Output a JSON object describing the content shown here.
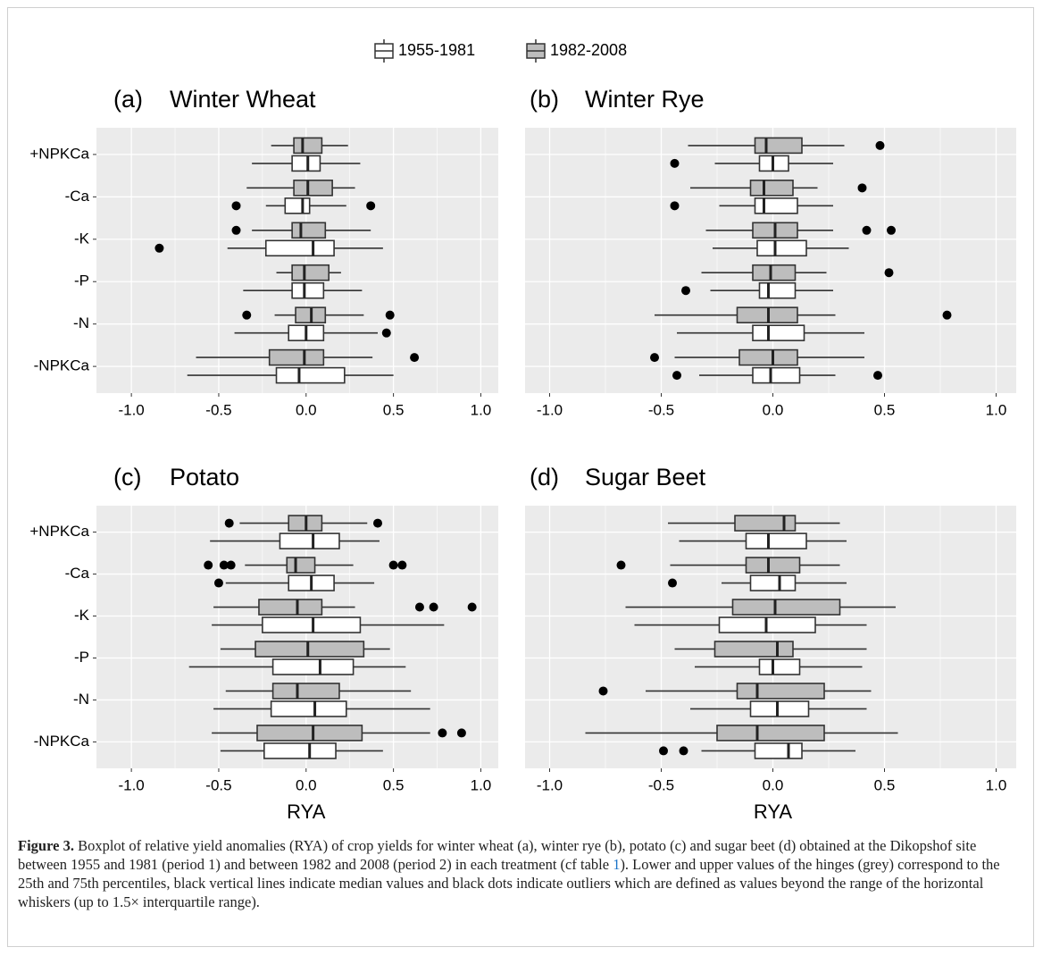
{
  "legend": [
    {
      "name": "1955-1981",
      "color": "#ffffff"
    },
    {
      "name": "1982-2008",
      "color": "#bdbdbd"
    }
  ],
  "chart_data": [
    {
      "type": "boxplot",
      "label": "(a)",
      "title": "Winter Wheat",
      "categories": [
        "+NPKCa",
        "-Ca",
        "-K",
        "-P",
        "-N",
        "-NPKCa"
      ],
      "xlim": [
        -1.2,
        1.1
      ],
      "xticks": [
        {
          "value": -1,
          "label": "-1.0"
        },
        -0.5,
        {
          "value": 0,
          "label": "0.0"
        },
        0.5,
        {
          "value": 1,
          "label": "1.0"
        }
      ],
      "periods": [
        {
          "boxes": [
            {
              "whislo": -0.31,
              "q1": -0.08,
              "med": 0.01,
              "q3": 0.08,
              "whishi": 0.31,
              "fliers": []
            },
            {
              "whislo": -0.23,
              "q1": -0.12,
              "med": -0.02,
              "q3": 0.02,
              "whishi": 0.23,
              "fliers": [
                -0.4,
                0.37
              ]
            },
            {
              "whislo": -0.45,
              "q1": -0.23,
              "med": 0.04,
              "q3": 0.16,
              "whishi": 0.44,
              "fliers": [
                -0.84
              ]
            },
            {
              "whislo": -0.36,
              "q1": -0.08,
              "med": -0.01,
              "q3": 0.1,
              "whishi": 0.32,
              "fliers": []
            },
            {
              "whislo": -0.41,
              "q1": -0.1,
              "med": 0.0,
              "q3": 0.1,
              "whishi": 0.41,
              "fliers": [
                0.46
              ]
            },
            {
              "whislo": -0.68,
              "q1": -0.17,
              "med": -0.04,
              "q3": 0.22,
              "whishi": 0.5,
              "fliers": []
            }
          ]
        },
        {
          "boxes": [
            {
              "whislo": -0.2,
              "q1": -0.07,
              "med": -0.02,
              "q3": 0.09,
              "whishi": 0.24,
              "fliers": []
            },
            {
              "whislo": -0.34,
              "q1": -0.07,
              "med": 0.01,
              "q3": 0.15,
              "whishi": 0.28,
              "fliers": []
            },
            {
              "whislo": -0.31,
              "q1": -0.08,
              "med": -0.03,
              "q3": 0.11,
              "whishi": 0.37,
              "fliers": [
                -0.4
              ]
            },
            {
              "whislo": -0.17,
              "q1": -0.08,
              "med": -0.01,
              "q3": 0.13,
              "whishi": 0.2,
              "fliers": []
            },
            {
              "whislo": -0.18,
              "q1": -0.06,
              "med": 0.03,
              "q3": 0.11,
              "whishi": 0.33,
              "fliers": [
                -0.34,
                0.48
              ]
            },
            {
              "whislo": -0.63,
              "q1": -0.21,
              "med": -0.01,
              "q3": 0.1,
              "whishi": 0.38,
              "fliers": [
                0.62
              ]
            }
          ]
        }
      ]
    },
    {
      "type": "boxplot",
      "label": "(b)",
      "title": "Winter Rye",
      "xlim": [
        -1.11,
        1.09
      ],
      "xticks": [
        {
          "value": -1,
          "label": "-1.0"
        },
        -0.5,
        {
          "value": 0,
          "label": "0.0"
        },
        0.5,
        {
          "value": 1,
          "label": "1.0"
        }
      ],
      "periods": [
        {
          "boxes": [
            {
              "whislo": -0.26,
              "q1": -0.06,
              "med": 0.0,
              "q3": 0.07,
              "whishi": 0.27,
              "fliers": [
                -0.44
              ]
            },
            {
              "whislo": -0.24,
              "q1": -0.08,
              "med": -0.04,
              "q3": 0.11,
              "whishi": 0.27,
              "fliers": [
                -0.44
              ]
            },
            {
              "whislo": -0.27,
              "q1": -0.07,
              "med": 0.01,
              "q3": 0.15,
              "whishi": 0.34,
              "fliers": []
            },
            {
              "whislo": -0.28,
              "q1": -0.06,
              "med": -0.02,
              "q3": 0.1,
              "whishi": 0.27,
              "fliers": [
                -0.39
              ]
            },
            {
              "whislo": -0.43,
              "q1": -0.09,
              "med": -0.02,
              "q3": 0.14,
              "whishi": 0.41,
              "fliers": []
            },
            {
              "whislo": -0.33,
              "q1": -0.09,
              "med": -0.01,
              "q3": 0.12,
              "whishi": 0.28,
              "fliers": [
                -0.43,
                0.47
              ]
            }
          ]
        },
        {
          "boxes": [
            {
              "whislo": -0.38,
              "q1": -0.08,
              "med": -0.03,
              "q3": 0.13,
              "whishi": 0.32,
              "fliers": [
                0.48
              ]
            },
            {
              "whislo": -0.37,
              "q1": -0.1,
              "med": -0.04,
              "q3": 0.09,
              "whishi": 0.2,
              "fliers": [
                0.4
              ]
            },
            {
              "whislo": -0.3,
              "q1": -0.09,
              "med": 0.01,
              "q3": 0.11,
              "whishi": 0.27,
              "fliers": [
                0.42,
                0.53
              ]
            },
            {
              "whislo": -0.32,
              "q1": -0.09,
              "med": -0.01,
              "q3": 0.1,
              "whishi": 0.24,
              "fliers": [
                0.52
              ]
            },
            {
              "whislo": -0.53,
              "q1": -0.16,
              "med": -0.02,
              "q3": 0.11,
              "whishi": 0.28,
              "fliers": [
                0.78
              ]
            },
            {
              "whislo": -0.44,
              "q1": -0.15,
              "med": 0.0,
              "q3": 0.11,
              "whishi": 0.41,
              "fliers": [
                -0.53
              ]
            }
          ]
        }
      ]
    },
    {
      "type": "boxplot",
      "label": "(c)",
      "title": "Potato",
      "x_label": "RYA",
      "categories": [
        "+NPKCa",
        "-Ca",
        "-K",
        "-P",
        "-N",
        "-NPKCa"
      ],
      "xlim": [
        -1.2,
        1.1
      ],
      "xticks": [
        {
          "value": -1,
          "label": "-1.0"
        },
        -0.5,
        {
          "value": 0,
          "label": "0.0"
        },
        0.5,
        {
          "value": 1,
          "label": "1.0"
        }
      ],
      "periods": [
        {
          "boxes": [
            {
              "whislo": -0.55,
              "q1": -0.15,
              "med": 0.04,
              "q3": 0.19,
              "whishi": 0.42,
              "fliers": []
            },
            {
              "whislo": -0.46,
              "q1": -0.1,
              "med": 0.03,
              "q3": 0.16,
              "whishi": 0.39,
              "fliers": [
                -0.5
              ]
            },
            {
              "whislo": -0.54,
              "q1": -0.25,
              "med": 0.04,
              "q3": 0.31,
              "whishi": 0.79,
              "fliers": []
            },
            {
              "whislo": -0.67,
              "q1": -0.19,
              "med": 0.08,
              "q3": 0.27,
              "whishi": 0.57,
              "fliers": []
            },
            {
              "whislo": -0.53,
              "q1": -0.2,
              "med": 0.05,
              "q3": 0.23,
              "whishi": 0.71,
              "fliers": []
            },
            {
              "whislo": -0.49,
              "q1": -0.24,
              "med": 0.02,
              "q3": 0.17,
              "whishi": 0.44,
              "fliers": []
            }
          ]
        },
        {
          "boxes": [
            {
              "whislo": -0.38,
              "q1": -0.1,
              "med": 0.0,
              "q3": 0.09,
              "whishi": 0.35,
              "fliers": [
                -0.44,
                0.41
              ]
            },
            {
              "whislo": -0.35,
              "q1": -0.11,
              "med": -0.06,
              "q3": 0.05,
              "whishi": 0.27,
              "fliers": [
                -0.56,
                -0.47,
                -0.43,
                0.5,
                0.55
              ]
            },
            {
              "whislo": -0.53,
              "q1": -0.27,
              "med": -0.05,
              "q3": 0.09,
              "whishi": 0.28,
              "fliers": [
                0.65,
                0.73,
                0.95
              ]
            },
            {
              "whislo": -0.49,
              "q1": -0.29,
              "med": 0.01,
              "q3": 0.33,
              "whishi": 0.48,
              "fliers": []
            },
            {
              "whislo": -0.46,
              "q1": -0.19,
              "med": -0.05,
              "q3": 0.19,
              "whishi": 0.6,
              "fliers": []
            },
            {
              "whislo": -0.54,
              "q1": -0.28,
              "med": 0.04,
              "q3": 0.32,
              "whishi": 0.71,
              "fliers": [
                0.78,
                0.89
              ]
            }
          ]
        }
      ]
    },
    {
      "type": "boxplot",
      "label": "(d)",
      "title": "Sugar Beet",
      "x_label": "RYA",
      "xlim": [
        -1.11,
        1.09
      ],
      "xticks": [
        {
          "value": -1,
          "label": "-1.0"
        },
        -0.5,
        {
          "value": 0,
          "label": "0.0"
        },
        0.5,
        {
          "value": 1,
          "label": "1.0"
        }
      ],
      "periods": [
        {
          "boxes": [
            {
              "whislo": -0.42,
              "q1": -0.12,
              "med": -0.02,
              "q3": 0.15,
              "whishi": 0.33,
              "fliers": []
            },
            {
              "whislo": -0.23,
              "q1": -0.1,
              "med": 0.03,
              "q3": 0.1,
              "whishi": 0.33,
              "fliers": [
                -0.45
              ]
            },
            {
              "whislo": -0.62,
              "q1": -0.24,
              "med": -0.03,
              "q3": 0.19,
              "whishi": 0.42,
              "fliers": []
            },
            {
              "whislo": -0.35,
              "q1": -0.06,
              "med": 0.0,
              "q3": 0.12,
              "whishi": 0.4,
              "fliers": []
            },
            {
              "whislo": -0.37,
              "q1": -0.1,
              "med": 0.02,
              "q3": 0.16,
              "whishi": 0.42,
              "fliers": []
            },
            {
              "whislo": -0.32,
              "q1": -0.08,
              "med": 0.07,
              "q3": 0.13,
              "whishi": 0.37,
              "fliers": [
                -0.49,
                -0.4
              ]
            }
          ]
        },
        {
          "boxes": [
            {
              "whislo": -0.47,
              "q1": -0.17,
              "med": 0.05,
              "q3": 0.1,
              "whishi": 0.3,
              "fliers": []
            },
            {
              "whislo": -0.46,
              "q1": -0.12,
              "med": -0.02,
              "q3": 0.12,
              "whishi": 0.3,
              "fliers": [
                -0.68
              ]
            },
            {
              "whislo": -0.66,
              "q1": -0.18,
              "med": 0.01,
              "q3": 0.3,
              "whishi": 0.55,
              "fliers": []
            },
            {
              "whislo": -0.44,
              "q1": -0.26,
              "med": 0.02,
              "q3": 0.09,
              "whishi": 0.42,
              "fliers": []
            },
            {
              "whislo": -0.57,
              "q1": -0.16,
              "med": -0.07,
              "q3": 0.23,
              "whishi": 0.44,
              "fliers": [
                -0.76
              ]
            },
            {
              "whislo": -0.84,
              "q1": -0.25,
              "med": -0.07,
              "q3": 0.23,
              "whishi": 0.56,
              "fliers": []
            }
          ]
        }
      ]
    }
  ],
  "caption": {
    "label": "Figure 3.",
    "text": " Boxplot of relative yield anomalies (RYA) of crop yields for winter wheat (a), winter rye (b), potato (c) and sugar beet (d) obtained at the Dikopshof site between 1955 and 1981 (period 1) and between 1982 and 2008 (period 2) in each treatment (cf table ",
    "link": "1",
    "rest": "). Lower and upper values of the hinges (grey) correspond to the 25th and 75th percentiles, black vertical lines indicate median values and black dots indicate outliers which are defined as values beyond the range of the horizontal whiskers (up to 1.5× interquartile range)."
  }
}
